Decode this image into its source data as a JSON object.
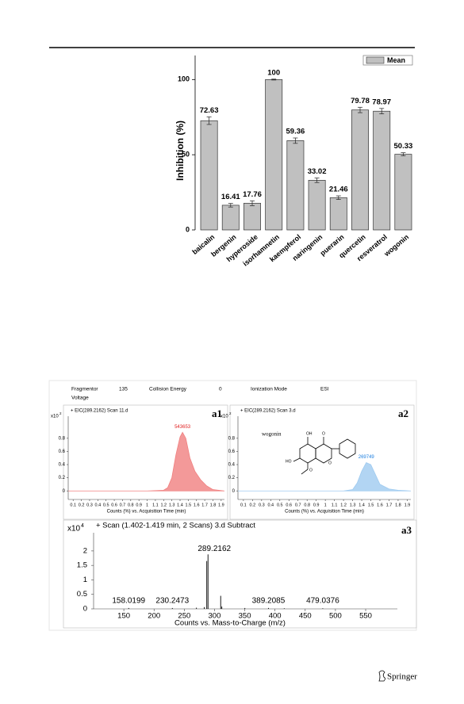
{
  "chart_data": [
    {
      "type": "bar",
      "ylabel": "Inhibition (%)",
      "categories": [
        "baicalin",
        "bergenin",
        "hyperoside",
        "isorhamnetin",
        "kaempferol",
        "naringenin",
        "puerarin",
        "quercetin",
        "resveratrol",
        "wogonin"
      ],
      "values": [
        72.63,
        16.41,
        17.76,
        100,
        59.36,
        33.02,
        21.46,
        79.78,
        78.97,
        50.33
      ],
      "errors": [
        2.5,
        1.2,
        1.6,
        0.3,
        1.8,
        1.5,
        1.2,
        1.8,
        1.8,
        1.0
      ],
      "series_name": "Mean",
      "color": "#c0c0c0",
      "ylim": [
        0,
        116
      ],
      "yticks": [
        0,
        50,
        100
      ],
      "legend": "top-right"
    },
    {
      "type": "area",
      "title": "+ EIC(289.2162) Scan 11.d",
      "panel": "a1",
      "y_multiplier": "x10",
      "y_exponent": "2",
      "xlabel": "Counts (%) vs. Acquisition Time (min)",
      "peak_label": "543653",
      "color": "#f08080",
      "x": [
        0.04,
        1.0,
        1.2,
        1.25,
        1.3,
        1.35,
        1.4,
        1.43,
        1.47,
        1.52,
        1.58,
        1.65,
        1.72,
        1.8,
        1.94
      ],
      "values": [
        0,
        0,
        0.01,
        0.05,
        0.2,
        0.55,
        0.82,
        0.89,
        0.8,
        0.5,
        0.3,
        0.17,
        0.08,
        0.02,
        0
      ],
      "xlim": [
        0.04,
        1.94
      ],
      "ylim": [
        -0.13,
        1.28
      ],
      "xticks": [
        0.1,
        0.2,
        0.3,
        0.4,
        0.5,
        0.6,
        0.7,
        0.8,
        0.9,
        1,
        1.1,
        1.2,
        1.3,
        1.4,
        1.5,
        1.6,
        1.7,
        1.8,
        1.9
      ],
      "yticks": [
        0,
        0.2,
        0.4,
        0.6,
        0.8
      ]
    },
    {
      "type": "area",
      "title": "+ EIC(289.2162) Scan 3.d",
      "panel": "a2",
      "y_multiplier": "x10",
      "y_exponent": "2",
      "xlabel": "Counts (%) vs. Acquisition Time (min)",
      "peak_label": "269749",
      "compound": "wogonin",
      "structure_labels": [
        "OH",
        "O",
        "HO",
        "O",
        "O"
      ],
      "color": "#9fcbf0",
      "x": [
        0.04,
        1.2,
        1.3,
        1.35,
        1.4,
        1.45,
        1.5,
        1.55,
        1.6,
        1.7,
        1.8,
        1.94
      ],
      "values": [
        0,
        0,
        0.02,
        0.12,
        0.3,
        0.43,
        0.4,
        0.25,
        0.1,
        0.03,
        0.01,
        0
      ],
      "xlim": [
        0.04,
        1.94
      ],
      "ylim": [
        -0.13,
        1.28
      ],
      "xticks": [
        0.1,
        0.2,
        0.3,
        0.4,
        0.5,
        0.6,
        0.7,
        0.8,
        0.9,
        1,
        1.1,
        1.2,
        1.3,
        1.4,
        1.5,
        1.6,
        1.7,
        1.8,
        1.9
      ],
      "yticks": [
        0,
        0.2,
        0.4,
        0.6,
        0.8
      ]
    },
    {
      "type": "stem",
      "title": "+ Scan (1.402-1.419 min, 2 Scans) 3.d  Subtract",
      "panel": "a3",
      "y_multiplier": "x10",
      "y_exponent": "4",
      "xlabel": "Counts vs. Mass-to-Charge (m/z)",
      "x": [
        158.0199,
        230.2473,
        270.1,
        283.1,
        287.2,
        289.2162,
        310.2,
        312.1,
        350.2,
        389.2085,
        415.3,
        479.0376
      ],
      "values": [
        0.03,
        0.03,
        0.04,
        0.06,
        1.65,
        1.88,
        0.45,
        0.08,
        0.03,
        0.03,
        0.02,
        0.02
      ],
      "peak_labels": [
        158.0199,
        230.2473,
        289.2162,
        389.2085,
        479.0376
      ],
      "color": "#000000",
      "xlim": [
        100,
        630
      ],
      "ylim": [
        0,
        2.9
      ],
      "xticks": [
        150,
        200,
        250,
        300,
        350,
        400,
        450,
        500,
        550
      ],
      "yticks": [
        0,
        0.5,
        1,
        1.5,
        2
      ]
    }
  ],
  "acquisition": {
    "labels": [
      "Fragmentor",
      "Voltage",
      "135",
      "Collision Energy",
      "0",
      "Ionization Mode",
      "ESI"
    ]
  },
  "footer": {
    "publisher": "Springer"
  }
}
